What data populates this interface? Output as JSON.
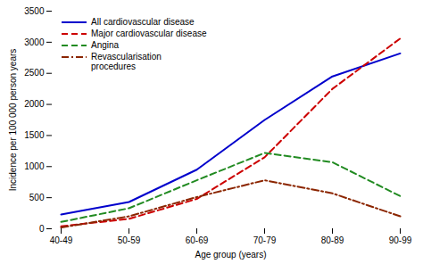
{
  "chart_data": {
    "type": "line",
    "categories": [
      "40-49",
      "50-59",
      "60-69",
      "70-79",
      "80-89",
      "90-99"
    ],
    "series": [
      {
        "name": "All cardiovascular disease",
        "color": "#0000cc",
        "line_style": "solid",
        "values": [
          230,
          430,
          950,
          1750,
          2450,
          2820
        ]
      },
      {
        "name": "Major cardiovascular disease",
        "color": "#cc0000",
        "line_style": "dashed",
        "values": [
          40,
          160,
          480,
          1150,
          2250,
          3060
        ]
      },
      {
        "name": "Angina",
        "color": "#228B22",
        "line_style": "dashed",
        "values": [
          110,
          330,
          780,
          1220,
          1070,
          525
        ]
      },
      {
        "name": "Revascularisation\nprocedures",
        "color": "#8B2500",
        "line_style": "dashdot",
        "values": [
          20,
          200,
          510,
          780,
          570,
          200
        ]
      }
    ],
    "xlabel": "Age group (years)",
    "ylabel": "Incidence per 100 000 person years",
    "ylim": [
      0,
      3500
    ],
    "yticks": [
      0,
      500,
      1000,
      1500,
      2000,
      2500,
      3000,
      3500
    ],
    "grid": false,
    "legend": "upper left"
  }
}
